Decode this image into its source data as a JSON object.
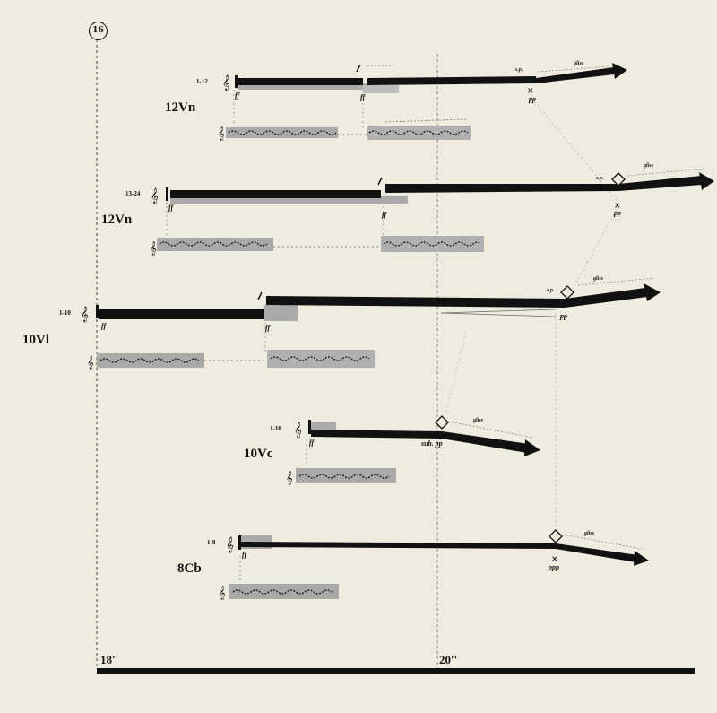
{
  "rehearsal_mark": "16",
  "timeline": {
    "start_label": "18''",
    "mid_label": "20''"
  },
  "groups": [
    {
      "id": "vn1",
      "name": "12Vn",
      "range": "1-12",
      "dyn_start": "ff",
      "dyn_restart": "ff",
      "sp": "s.p.",
      "gliss": "gliss",
      "end_dyn": "pp"
    },
    {
      "id": "vn2",
      "name": "12Vn",
      "range": "13-24",
      "dyn_start": "ff",
      "dyn_restart": "ff",
      "sp": "s.p.",
      "gliss": "gliss",
      "end_dyn": "pp"
    },
    {
      "id": "vl",
      "name": "10Vl",
      "range": "1-10",
      "dyn_start": "ff",
      "dyn_restart": "ff",
      "sp": "s.p.",
      "gliss": "gliss",
      "end_dyn": "pp"
    },
    {
      "id": "vc",
      "name": "10Vc",
      "range": "1-10",
      "dyn_start": "ff",
      "sub": "sub. pp",
      "gliss": "gliss"
    },
    {
      "id": "cb",
      "name": "8Cb",
      "range": "1-8",
      "dyn_start": "ff",
      "gliss": "gliss",
      "end_dyn": "ppp"
    }
  ]
}
